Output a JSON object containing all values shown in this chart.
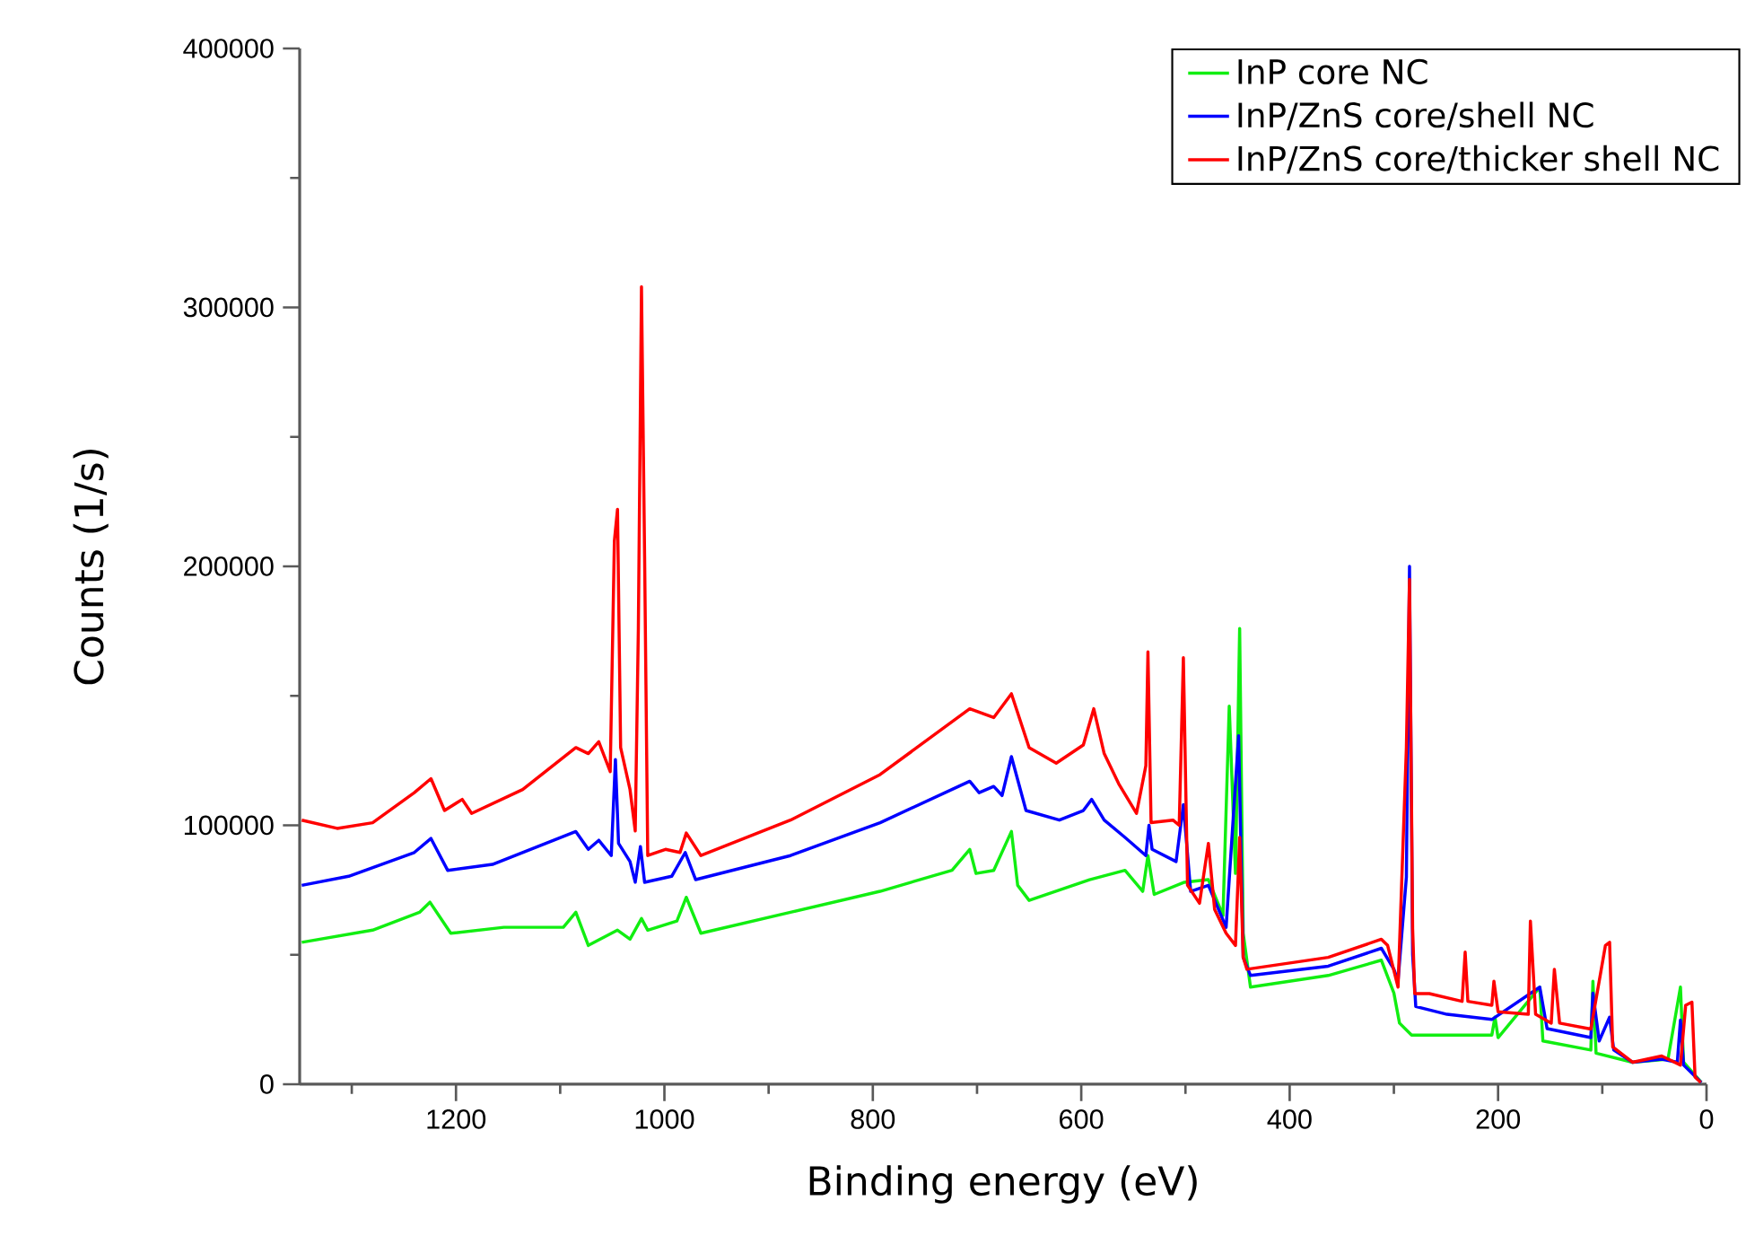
{
  "chart_data": {
    "type": "line",
    "xlabel": "Binding energy (eV)",
    "ylabel": "Counts (1/s)",
    "xlim": [
      1350,
      0
    ],
    "ylim": [
      0,
      400000
    ],
    "xticks": [
      {
        "value": 1300,
        "label": null
      },
      1200,
      {
        "value": 1100,
        "label": null
      },
      1000,
      {
        "value": 900,
        "label": null
      },
      800,
      {
        "value": 700,
        "label": null
      },
      600,
      {
        "value": 500,
        "label": null
      },
      400,
      {
        "value": 300,
        "label": null
      },
      200,
      {
        "value": 100,
        "label": null
      },
      0
    ],
    "yticks": [
      0,
      {
        "value": 50000,
        "label": null
      },
      100000,
      {
        "value": 150000,
        "label": null
      },
      200000,
      {
        "value": 250000,
        "label": null
      },
      300000,
      {
        "value": 350000,
        "label": null
      },
      400000
    ],
    "legend": "top right",
    "grid": false,
    "marker": "none",
    "line_style": "solid",
    "series": [
      {
        "name": "InP core NC",
        "color": "#11ee11",
        "x": [
          1348,
          1280,
          1235,
          1225,
          1205,
          1154,
          1097,
          1085,
          1073,
          1045,
          1033,
          1022,
          1016,
          988,
          979,
          965,
          879,
          793,
          724,
          707,
          701,
          684,
          667,
          661,
          650,
          592,
          558,
          541,
          536,
          530,
          501,
          478,
          464,
          458,
          452,
          448,
          444.6,
          437.6,
          363,
          312,
          300,
          294.6,
          283,
          206,
          203,
          200,
          160,
          157,
          111,
          109,
          106,
          71,
          37,
          25,
          22,
          5
        ],
        "values": [
          54800,
          59500,
          66400,
          70300,
          58300,
          60600,
          60600,
          66400,
          53600,
          59500,
          56000,
          64000,
          59500,
          63000,
          72200,
          58300,
          66400,
          74500,
          82600,
          90700,
          81400,
          82600,
          97600,
          76800,
          71000,
          79000,
          82600,
          74500,
          88300,
          73300,
          78000,
          79000,
          65200,
          146000,
          81400,
          176000,
          58300,
          37500,
          42000,
          47900,
          35200,
          23600,
          19000,
          19000,
          25900,
          18000,
          37500,
          16700,
          13200,
          39800,
          12000,
          8500,
          9700,
          37500,
          8500,
          700
        ]
      },
      {
        "name": "InP/ZnS core/shell NC",
        "color": "#0000ff",
        "x": [
          1348,
          1303,
          1240,
          1224,
          1208,
          1165,
          1085,
          1073,
          1063,
          1051,
          1047,
          1044,
          1033,
          1028,
          1023,
          1019,
          993,
          980,
          970,
          879,
          793,
          707,
          698,
          684,
          676,
          667,
          653,
          621,
          598,
          590,
          578,
          558,
          538,
          535,
          532,
          509,
          502,
          495,
          478,
          461,
          449,
          444.6,
          437.6,
          363,
          312,
          300,
          296,
          288,
          285,
          282,
          279,
          249,
          206,
          160,
          153,
          111,
          109,
          103,
          93,
          89,
          71,
          43,
          28,
          25,
          22,
          5
        ],
        "values": [
          76800,
          80300,
          89500,
          94900,
          82600,
          84900,
          97600,
          90700,
          94200,
          88300,
          125400,
          93000,
          86000,
          78000,
          91800,
          78000,
          80300,
          89500,
          79000,
          88300,
          101000,
          117000,
          112600,
          115000,
          111500,
          126500,
          105700,
          102000,
          105700,
          110000,
          102000,
          95300,
          88300,
          100000,
          90700,
          86000,
          108000,
          74500,
          76800,
          60600,
          134600,
          49000,
          42000,
          45600,
          52500,
          44400,
          40000,
          80000,
          200000,
          50000,
          30000,
          27000,
          25000,
          37500,
          21500,
          18000,
          35200,
          16700,
          25900,
          13200,
          8500,
          9700,
          8500,
          24800,
          7400,
          700
        ]
      },
      {
        "name": "InP/ZnS core/thicker shell NC",
        "color": "#ff0000",
        "x": [
          1348,
          1314,
          1280,
          1240,
          1224,
          1211,
          1194,
          1185,
          1136,
          1085,
          1073,
          1063,
          1052,
          1048,
          1045,
          1042,
          1033,
          1028,
          1025,
          1022,
          1019,
          1016,
          999,
          985,
          979,
          965,
          879,
          793,
          707,
          684,
          667,
          650,
          624,
          598,
          588,
          578,
          564,
          547,
          538,
          536,
          533,
          512,
          506,
          502,
          498,
          486.5,
          478,
          472,
          461,
          452,
          448,
          444.6,
          441,
          363,
          312,
          306,
          296,
          288,
          285,
          282,
          280,
          266,
          234.5,
          231.6,
          229,
          206,
          204,
          200,
          171,
          169,
          164,
          149,
          146,
          141,
          111,
          97,
          93,
          90,
          71,
          43,
          25,
          20,
          14,
          11,
          5.5
        ],
        "values": [
          102000,
          98800,
          101000,
          112600,
          118000,
          105700,
          110000,
          104600,
          113800,
          130000,
          127700,
          132300,
          120700,
          209800,
          222000,
          130000,
          113800,
          97800,
          176000,
          308000,
          204000,
          88300,
          90700,
          89500,
          97000,
          88300,
          102000,
          119600,
          145000,
          141600,
          150800,
          130000,
          124000,
          131000,
          145000,
          127700,
          116000,
          104600,
          123000,
          167000,
          101000,
          102000,
          100000,
          164700,
          76800,
          69900,
          93000,
          67500,
          58300,
          53600,
          95300,
          49000,
          44400,
          49000,
          56000,
          53600,
          37500,
          130000,
          195000,
          60000,
          35000,
          35000,
          32000,
          51000,
          32000,
          30500,
          39800,
          28000,
          27000,
          63000,
          27000,
          23600,
          44400,
          23600,
          21300,
          53600,
          54800,
          14400,
          8500,
          10900,
          7400,
          30500,
          31700,
          2800,
          700
        ]
      }
    ]
  }
}
